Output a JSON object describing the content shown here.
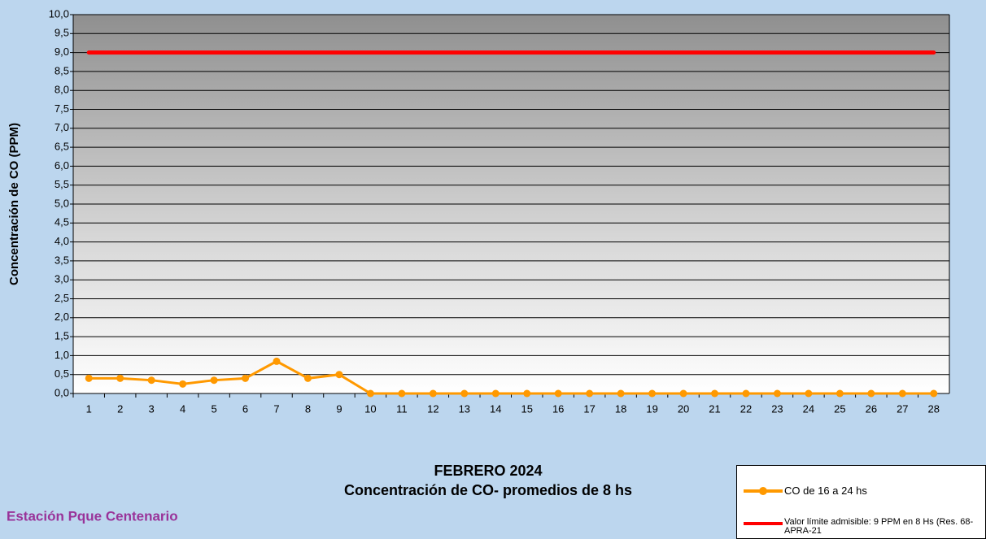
{
  "chart_data": {
    "type": "line",
    "title": "FEBRERO 2024",
    "subtitle": "Concentración de CO- promedios de 8 hs",
    "station": "Estación Pque Centenario",
    "y_label": "Concentración de CO (PPM)",
    "categories": [
      "1",
      "2",
      "3",
      "4",
      "5",
      "6",
      "7",
      "8",
      "9",
      "10",
      "11",
      "12",
      "13",
      "14",
      "15",
      "16",
      "17",
      "18",
      "19",
      "20",
      "21",
      "22",
      "23",
      "24",
      "25",
      "26",
      "27",
      "28"
    ],
    "series": [
      {
        "name": "CO de 16 a 24 hs",
        "color": "#ff9900",
        "markers": true,
        "values": [
          0.4,
          0.4,
          0.35,
          0.25,
          0.35,
          0.4,
          0.85,
          0.4,
          0.5,
          0,
          0,
          0,
          0,
          0,
          0,
          0,
          0,
          0,
          0,
          0,
          0,
          0,
          0,
          0,
          0,
          0,
          0,
          0
        ]
      },
      {
        "name": "Valor límite admisible: 9 PPM en 8 Hs (Res. 68-APRA-21",
        "color": "#ff0000",
        "markers": false,
        "values": [
          9,
          9,
          9,
          9,
          9,
          9,
          9,
          9,
          9,
          9,
          9,
          9,
          9,
          9,
          9,
          9,
          9,
          9,
          9,
          9,
          9,
          9,
          9,
          9,
          9,
          9,
          9,
          9
        ]
      }
    ],
    "ylim": [
      0,
      10
    ],
    "yticks": [
      {
        "value": 0,
        "label": "0,0"
      },
      {
        "value": 0.5,
        "label": "0,5"
      },
      {
        "value": 1,
        "label": "1,0"
      },
      {
        "value": 1.5,
        "label": "1,5"
      },
      {
        "value": 2,
        "label": "2,0"
      },
      {
        "value": 2.5,
        "label": "2,5"
      },
      {
        "value": 3,
        "label": "3,0"
      },
      {
        "value": 3.5,
        "label": "3,5"
      },
      {
        "value": 4,
        "label": "4,0"
      },
      {
        "value": 4.5,
        "label": "4,5"
      },
      {
        "value": 5,
        "label": "5,0"
      },
      {
        "value": 5.5,
        "label": "5,5"
      },
      {
        "value": 6,
        "label": "6,0"
      },
      {
        "value": 6.5,
        "label": "6,5"
      },
      {
        "value": 7,
        "label": "7,0"
      },
      {
        "value": 7.5,
        "label": "7,5"
      },
      {
        "value": 8,
        "label": "8,0"
      },
      {
        "value": 8.5,
        "label": "8,5"
      },
      {
        "value": 9,
        "label": "9,0"
      },
      {
        "value": 9.5,
        "label": "9,5"
      },
      {
        "value": 10,
        "label": "10,0"
      }
    ],
    "grid": true
  }
}
